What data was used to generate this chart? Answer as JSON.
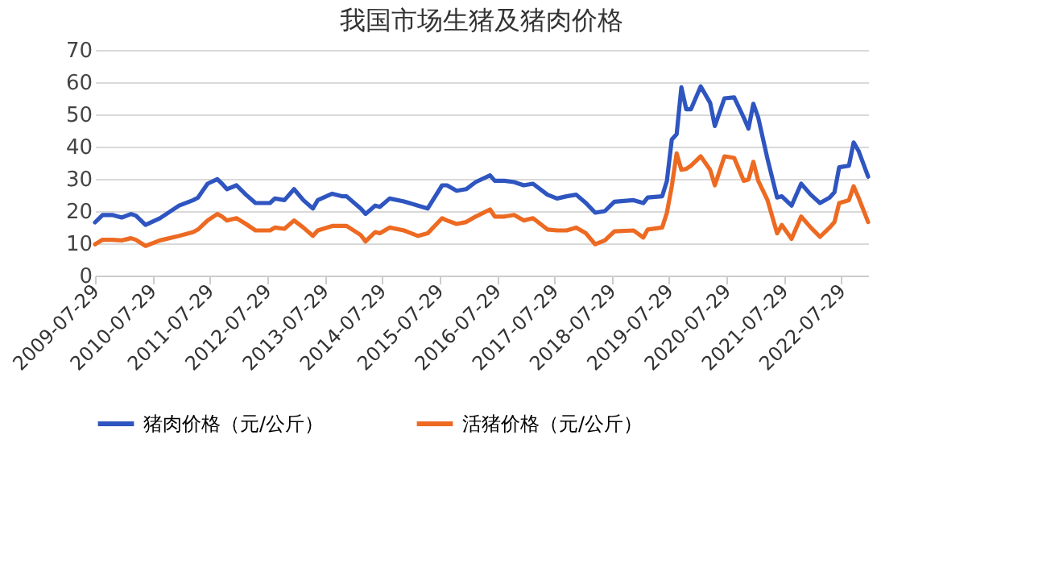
{
  "chart_data": {
    "type": "line",
    "title": "我国市场生猪及猪肉价格",
    "x": [
      "2009-07-29",
      "2009-09-15",
      "2009-11-15",
      "2010-01-15",
      "2010-03-15",
      "2010-04-15",
      "2010-06-15",
      "2010-09-15",
      "2011-01-15",
      "2011-04-15",
      "2011-05-15",
      "2011-07-15",
      "2011-09-15",
      "2011-10-15",
      "2011-11-15",
      "2012-01-15",
      "2012-03-15",
      "2012-05-15",
      "2012-08-15",
      "2012-09-15",
      "2012-11-15",
      "2013-01-15",
      "2013-03-15",
      "2013-05-15",
      "2013-06-15",
      "2013-09-15",
      "2013-11-15",
      "2013-12-15",
      "2014-03-15",
      "2014-04-15",
      "2014-06-15",
      "2014-07-15",
      "2014-09-15",
      "2014-12-15",
      "2015-03-15",
      "2015-05-15",
      "2015-08-15",
      "2015-09-15",
      "2015-11-15",
      "2016-01-15",
      "2016-03-15",
      "2016-06-15",
      "2016-07-15",
      "2016-09-15",
      "2016-11-15",
      "2017-01-15",
      "2017-03-15",
      "2017-06-15",
      "2017-08-15",
      "2017-10-15",
      "2017-12-15",
      "2018-02-15",
      "2018-04-15",
      "2018-06-15",
      "2018-08-15",
      "2018-12-15",
      "2019-02-15",
      "2019-03-15",
      "2019-06-15",
      "2019-07-15",
      "2019-08-15",
      "2019-09-15",
      "2019-10-15",
      "2019-11-15",
      "2019-12-15",
      "2020-02-15",
      "2020-04-15",
      "2020-05-15",
      "2020-07-15",
      "2020-09-15",
      "2020-11-15",
      "2020-12-15",
      "2021-01-15",
      "2021-02-15",
      "2021-04-15",
      "2021-06-15",
      "2021-07-15",
      "2021-09-15",
      "2021-11-15",
      "2022-01-15",
      "2022-03-15",
      "2022-05-15",
      "2022-06-15",
      "2022-07-15",
      "2022-09-15",
      "2022-10-15",
      "2022-11-15",
      "2023-01-15"
    ],
    "series": [
      {
        "name": "猪肉价格（元/公斤）",
        "color": "#2e55c0",
        "values": [
          16.5,
          18.8,
          18.8,
          18,
          19.1,
          18.6,
          15.7,
          17.8,
          21.7,
          23.4,
          24.2,
          28.5,
          29.9,
          28.5,
          26.8,
          28,
          25.1,
          22.5,
          22.5,
          23.9,
          23.4,
          26.8,
          23.4,
          20.8,
          23.4,
          25.4,
          24.6,
          24.6,
          20.8,
          19.1,
          21.7,
          21.3,
          23.9,
          23,
          21.7,
          20.8,
          28,
          28,
          26.3,
          26.8,
          29,
          31.1,
          29.4,
          29.4,
          29,
          28,
          28.5,
          25.1,
          23.9,
          24.6,
          25.1,
          22.5,
          19.5,
          20,
          22.9,
          23.4,
          22.5,
          24.2,
          24.6,
          29.4,
          42.2,
          43.9,
          58.4,
          51.6,
          51.6,
          58.7,
          53.6,
          46.4,
          55,
          55.3,
          49,
          45.6,
          53.3,
          49,
          36.2,
          24.2,
          24.6,
          21.7,
          28.5,
          25.1,
          22.5,
          24.2,
          25.9,
          33.6,
          34.1,
          41.3,
          38.7,
          30.7
        ]
      },
      {
        "name": "活猪价格（元/公斤）",
        "color": "#ed6a22",
        "values": [
          9.7,
          11.1,
          11.1,
          10.9,
          11.6,
          11.1,
          9.2,
          10.9,
          12.3,
          13.5,
          14.3,
          17.1,
          19.1,
          18.3,
          17.1,
          17.8,
          16,
          14,
          14,
          14.9,
          14.5,
          17.1,
          14.9,
          12.3,
          14,
          15.4,
          15.4,
          15.4,
          12.6,
          10.6,
          13.5,
          13.1,
          14.9,
          14,
          12.3,
          13.1,
          17.8,
          17.1,
          16,
          16.6,
          18.3,
          20.5,
          18.3,
          18.3,
          18.8,
          17.1,
          17.8,
          14.3,
          14,
          14,
          14.9,
          13.1,
          9.7,
          10.9,
          13.7,
          14,
          11.8,
          14.3,
          14.9,
          19.5,
          27.7,
          37.9,
          32.8,
          33.1,
          34.1,
          37,
          32.8,
          28,
          37,
          36.5,
          29.4,
          29.8,
          35.3,
          29.4,
          23.4,
          13.1,
          15.7,
          11.4,
          18.3,
          14.9,
          12,
          14.9,
          16.6,
          22.5,
          23.4,
          27.7,
          24.2,
          16.6
        ]
      }
    ],
    "xlim": [
      "2009-07-29",
      "2023-01-15"
    ],
    "xticks": [
      "2009-07-29",
      "2010-07-29",
      "2011-07-29",
      "2012-07-29",
      "2013-07-29",
      "2014-07-29",
      "2015-07-29",
      "2016-07-29",
      "2017-07-29",
      "2018-07-29",
      "2019-07-29",
      "2020-07-29",
      "2021-07-29",
      "2022-07-29"
    ],
    "ylim": [
      0,
      70
    ],
    "yticks": [
      0,
      10,
      20,
      30,
      40,
      50,
      60,
      70
    ],
    "grid": "y",
    "legend": "bottom"
  }
}
